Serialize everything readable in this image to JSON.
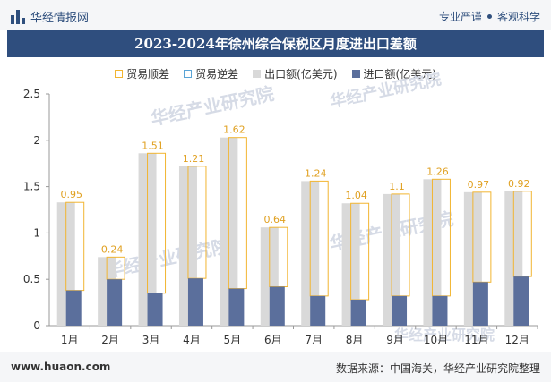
{
  "header": {
    "brand": "华经情报网",
    "tag_left": "专业严谨",
    "tag_right": "客观科学"
  },
  "title": "2023-2024年徐州综合保税区月度进出口差额",
  "legend": {
    "surplus": "贸易顺差",
    "deficit": "贸易逆差",
    "export": "出口额(亿美元)",
    "import": "进口额(亿美元)"
  },
  "watermark": "华经产业研究院",
  "footer": {
    "url": "www.huaon.com",
    "source": "数据来源：中国海关，华经产业研究院整理"
  },
  "colors": {
    "export": "#d9d9d9",
    "import": "#5b6f9c",
    "surplus": "#f2b531",
    "label": "#e0a020"
  },
  "chart_data": {
    "type": "bar",
    "categories": [
      "1月",
      "2月",
      "3月",
      "4月",
      "5月",
      "6月",
      "7月",
      "8月",
      "9月",
      "10月",
      "11月",
      "12月"
    ],
    "series": [
      {
        "name": "出口额(亿美元)",
        "values": [
          1.33,
          0.74,
          1.86,
          1.72,
          2.03,
          1.06,
          1.56,
          1.32,
          1.42,
          1.58,
          1.44,
          1.45
        ]
      },
      {
        "name": "进口额(亿美元)",
        "values": [
          0.38,
          0.5,
          0.35,
          0.51,
          0.4,
          0.42,
          0.32,
          0.28,
          0.32,
          0.32,
          0.47,
          0.53
        ]
      },
      {
        "name": "贸易顺差",
        "values": [
          0.95,
          0.24,
          1.51,
          1.21,
          1.62,
          0.64,
          1.24,
          1.04,
          1.1,
          1.26,
          0.97,
          0.92
        ]
      }
    ],
    "yticks": [
      "0",
      "0.5",
      "1",
      "1.5",
      "2",
      "2.5"
    ],
    "ylim": [
      0,
      2.5
    ],
    "grid": false,
    "legend_position": "top"
  }
}
